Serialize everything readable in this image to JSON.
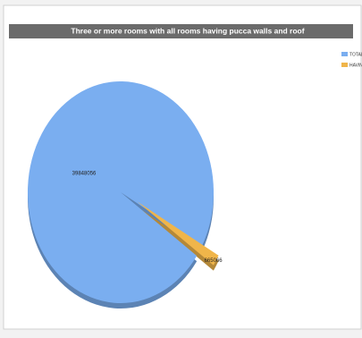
{
  "chart_data": {
    "type": "pie",
    "title": "Three or more rooms with all rooms having pucca walls and roof",
    "categories": [
      "TOTAL",
      "HAVING ROOM"
    ],
    "values": [
      39848056,
      665066
    ],
    "colors": [
      "#7aaef0",
      "#f0b54a"
    ],
    "legend": "top-right"
  }
}
